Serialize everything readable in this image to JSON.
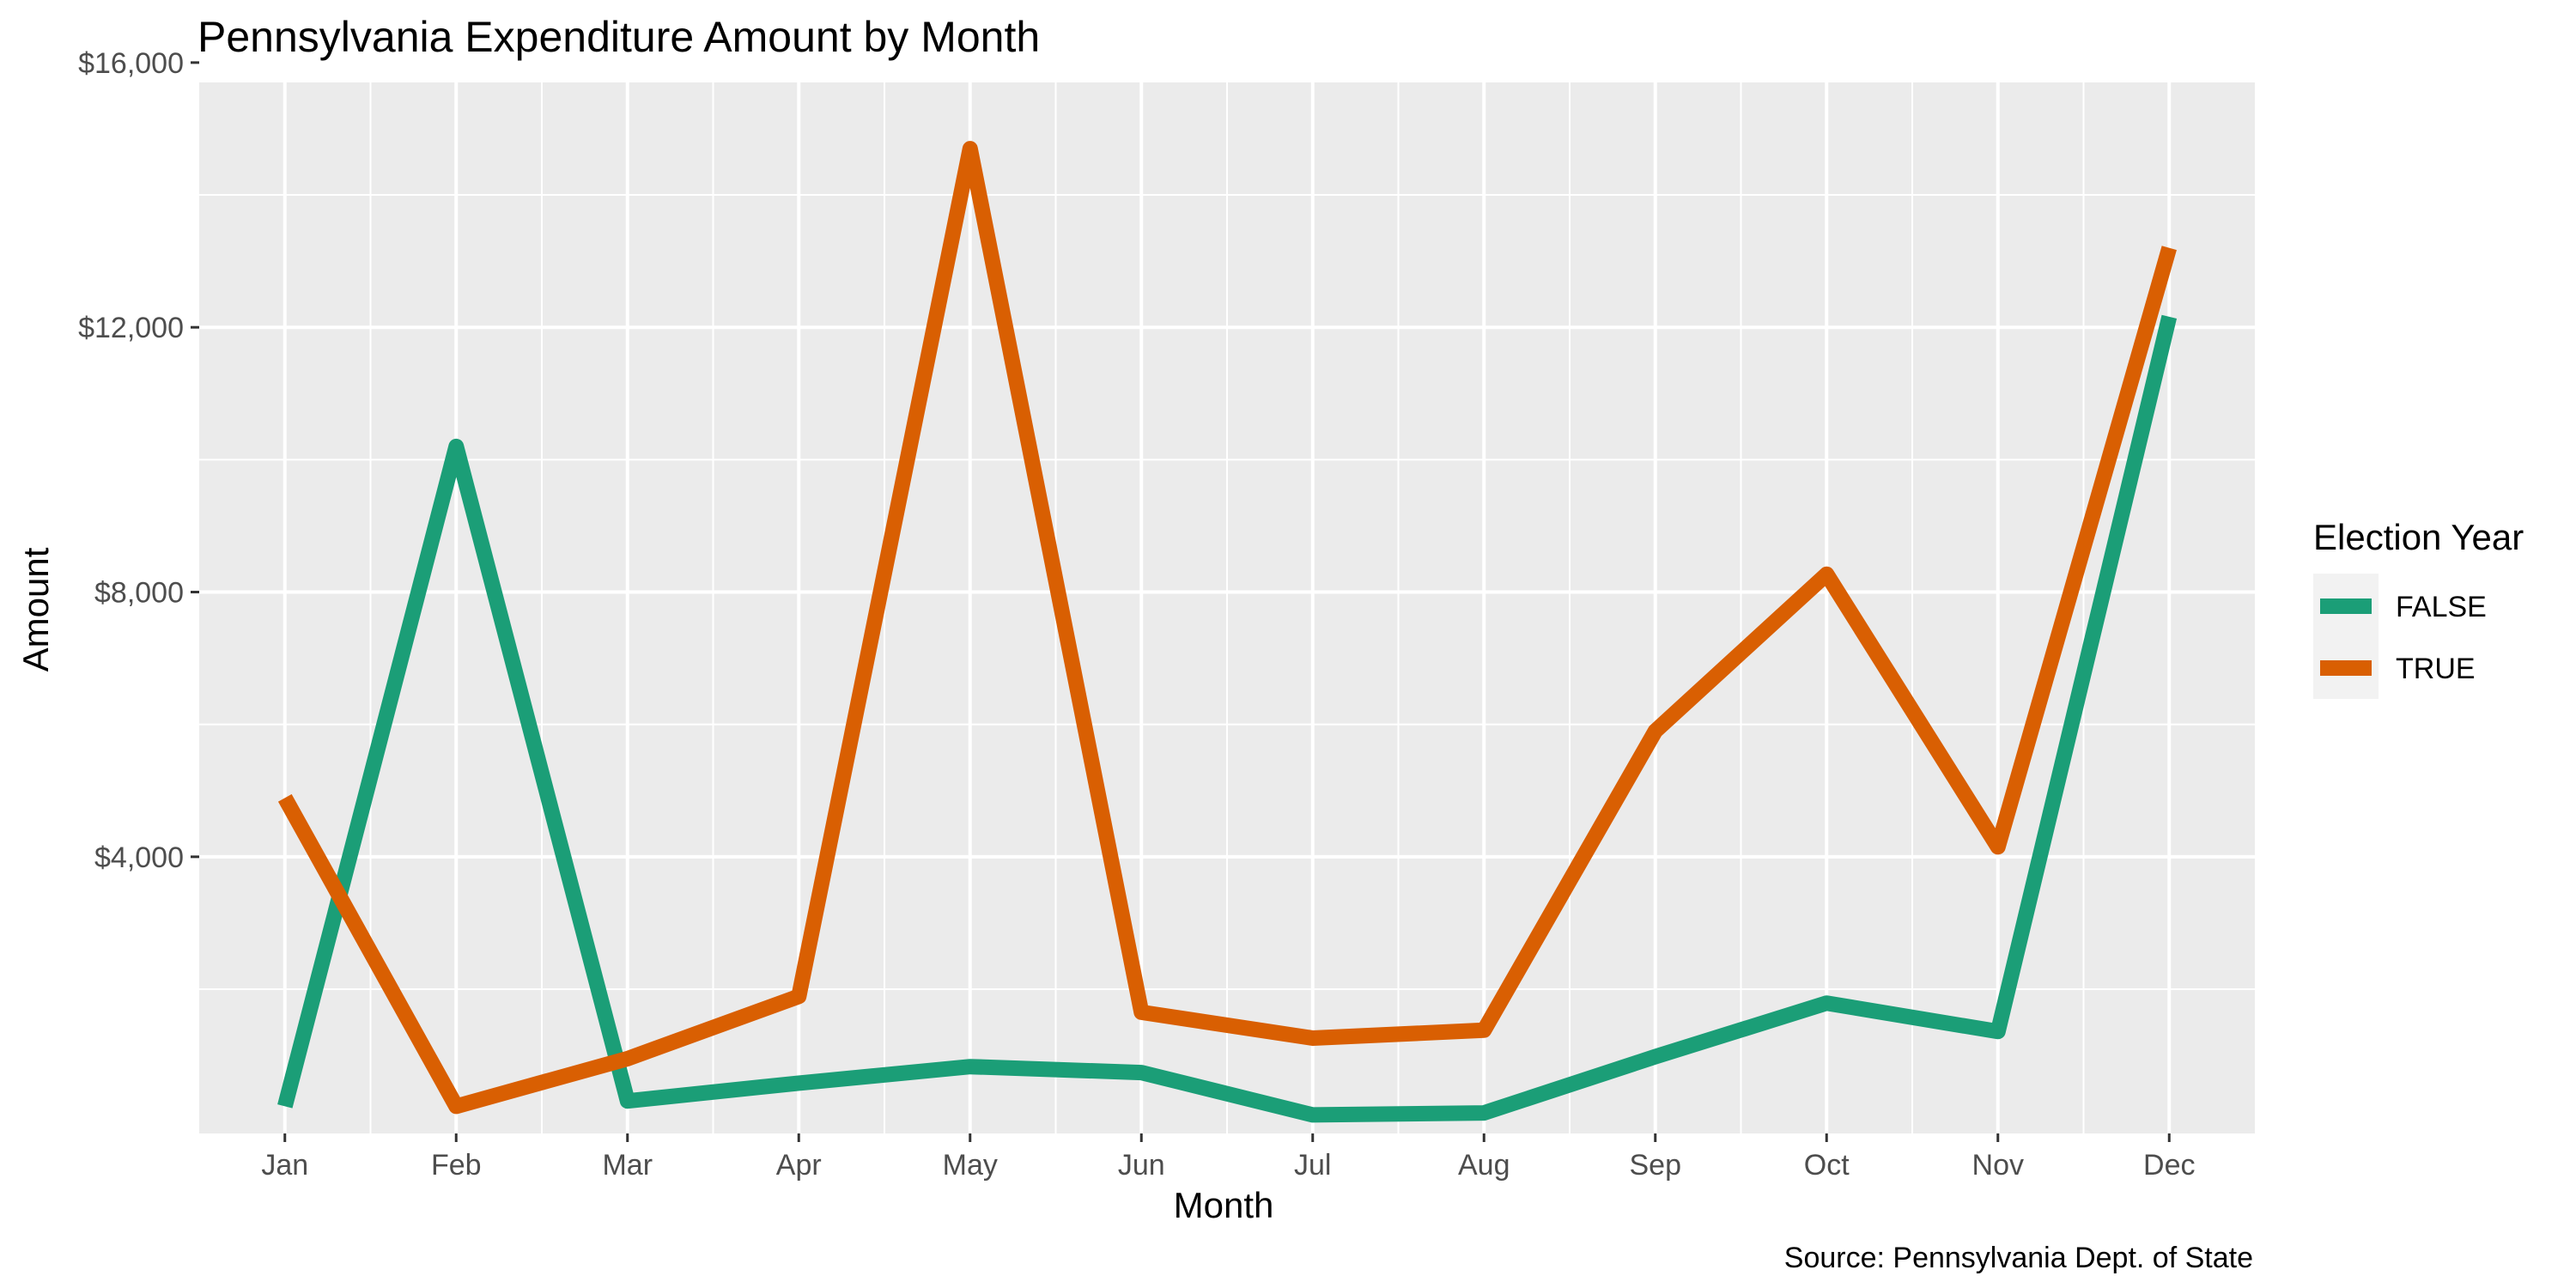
{
  "chart_data": {
    "type": "line",
    "title": "Pennsylvania Expenditure Amount by Month",
    "xlabel": "Month",
    "ylabel": "Amount",
    "caption": "Source: Pennsylvania Dept. of State",
    "categories": [
      "Jan",
      "Feb",
      "Mar",
      "Apr",
      "May",
      "Jun",
      "Jul",
      "Aug",
      "Sep",
      "Oct",
      "Nov",
      "Dec"
    ],
    "ylim": [
      -180,
      15700
    ],
    "yticks": [
      4000,
      8000,
      12000,
      16000
    ],
    "ytick_labels": [
      "$4,000",
      "$8,000",
      "$12,000",
      "$16,000"
    ],
    "grid": true,
    "legend": {
      "title": "Election Year",
      "position": "right"
    },
    "series": [
      {
        "name": "FALSE",
        "color": "#1b9e77",
        "values": [
          230,
          10200,
          310,
          580,
          830,
          740,
          100,
          130,
          980,
          1790,
          1360,
          12160
        ]
      },
      {
        "name": "TRUE",
        "color": "#d95f02",
        "values": [
          4890,
          230,
          950,
          1890,
          14700,
          1650,
          1260,
          1380,
          5900,
          8270,
          4150,
          13200
        ]
      }
    ]
  }
}
